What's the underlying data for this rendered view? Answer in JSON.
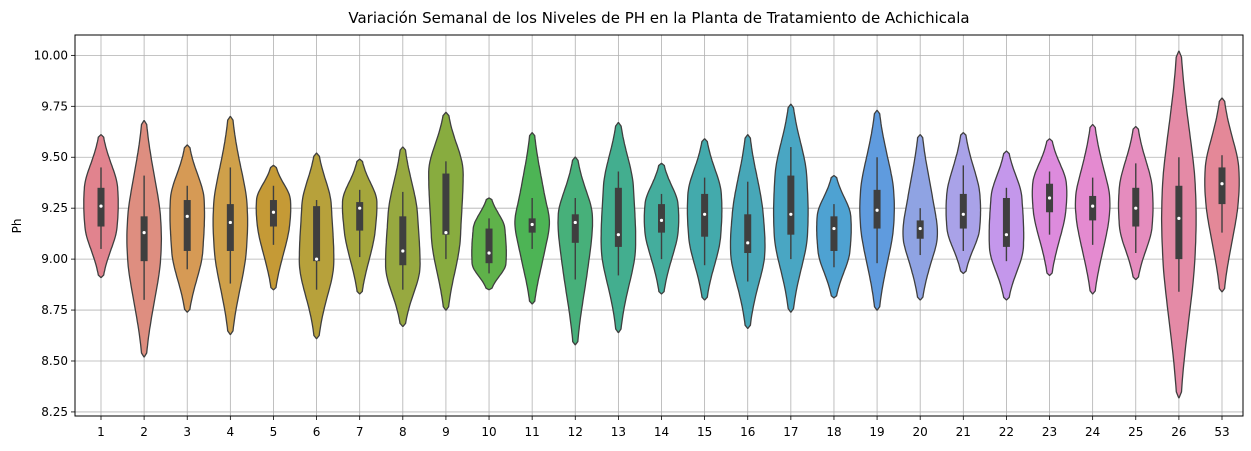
{
  "chart_data": {
    "type": "violin",
    "title": "Variación Semanal de los Niveles de PH en la Planta de Tratamiento de Achichicala",
    "xlabel": "",
    "ylabel": "Ph",
    "ylim": [
      8.23,
      10.1
    ],
    "yticks": [
      "8.25",
      "8.50",
      "8.75",
      "9.00",
      "9.25",
      "9.50",
      "9.75",
      "10.00"
    ],
    "grid": true,
    "categories": [
      "1",
      "2",
      "3",
      "4",
      "5",
      "6",
      "7",
      "8",
      "9",
      "10",
      "11",
      "12",
      "13",
      "14",
      "15",
      "16",
      "17",
      "18",
      "19",
      "20",
      "21",
      "22",
      "23",
      "24",
      "25",
      "26",
      "53"
    ],
    "colors": [
      "#e1838e",
      "#de8e80",
      "#d69a55",
      "#cfa04a",
      "#c59a36",
      "#b7a13b",
      "#a5a63c",
      "#97a940",
      "#88ac3f",
      "#5fb24a",
      "#4db455",
      "#47b07a",
      "#43ae8f",
      "#44ad9d",
      "#43aaac",
      "#47a7b8",
      "#49a6c3",
      "#4ea2d2",
      "#5f9bde",
      "#8fa3e3",
      "#a9a2e8",
      "#c497eb",
      "#dd8bdd",
      "#e48ad0",
      "#e58cbe",
      "#e48aa6",
      "#e48898"
    ],
    "series": [
      {
        "category": "1",
        "min": 8.91,
        "max": 9.61,
        "q1": 9.16,
        "median": 9.26,
        "q3": 9.35,
        "whisker_low": 9.05,
        "whisker_high": 9.45,
        "peak": 9.27
      },
      {
        "category": "2",
        "min": 8.52,
        "max": 9.68,
        "q1": 8.99,
        "median": 9.13,
        "q3": 9.21,
        "whisker_low": 8.8,
        "whisker_high": 9.41,
        "peak": 9.1
      },
      {
        "category": "3",
        "min": 8.74,
        "max": 9.56,
        "q1": 9.04,
        "median": 9.21,
        "q3": 9.29,
        "whisker_low": 8.95,
        "whisker_high": 9.36,
        "peak": 9.22
      },
      {
        "category": "4",
        "min": 8.63,
        "max": 9.7,
        "q1": 9.04,
        "median": 9.18,
        "q3": 9.27,
        "whisker_low": 8.88,
        "whisker_high": 9.45,
        "peak": 9.18
      },
      {
        "category": "5",
        "min": 8.85,
        "max": 9.46,
        "q1": 9.16,
        "median": 9.23,
        "q3": 9.29,
        "whisker_low": 9.07,
        "whisker_high": 9.36,
        "peak": 9.25
      },
      {
        "category": "6",
        "min": 8.61,
        "max": 9.52,
        "q1": 8.99,
        "median": 9.0,
        "q3": 9.26,
        "whisker_low": 8.85,
        "whisker_high": 9.29,
        "peak": 9.0
      },
      {
        "category": "7",
        "min": 8.83,
        "max": 9.49,
        "q1": 9.14,
        "median": 9.25,
        "q3": 9.28,
        "whisker_low": 9.01,
        "whisker_high": 9.34,
        "peak": 9.26
      },
      {
        "category": "8",
        "min": 8.67,
        "max": 9.55,
        "q1": 8.97,
        "median": 9.04,
        "q3": 9.21,
        "whisker_low": 8.85,
        "whisker_high": 9.33,
        "peak": 8.98
      },
      {
        "category": "9",
        "min": 8.75,
        "max": 9.72,
        "q1": 9.12,
        "median": 9.13,
        "q3": 9.42,
        "whisker_low": 9.0,
        "whisker_high": 9.48,
        "peak": 9.42
      },
      {
        "category": "10",
        "min": 8.85,
        "max": 9.3,
        "q1": 8.98,
        "median": 9.03,
        "q3": 9.15,
        "whisker_low": 8.93,
        "whisker_high": 9.2,
        "peak": 9.03
      },
      {
        "category": "11",
        "min": 8.78,
        "max": 9.62,
        "q1": 9.13,
        "median": 9.17,
        "q3": 9.2,
        "whisker_low": 9.05,
        "whisker_high": 9.3,
        "peak": 9.18
      },
      {
        "category": "12",
        "min": 8.58,
        "max": 9.5,
        "q1": 9.08,
        "median": 9.18,
        "q3": 9.22,
        "whisker_low": 8.9,
        "whisker_high": 9.3,
        "peak": 9.18
      },
      {
        "category": "13",
        "min": 8.64,
        "max": 9.67,
        "q1": 9.06,
        "median": 9.12,
        "q3": 9.35,
        "whisker_low": 8.92,
        "whisker_high": 9.43,
        "peak": 9.1
      },
      {
        "category": "14",
        "min": 8.83,
        "max": 9.47,
        "q1": 9.13,
        "median": 9.19,
        "q3": 9.27,
        "whisker_low": 9.0,
        "whisker_high": 9.32,
        "peak": 9.2
      },
      {
        "category": "15",
        "min": 8.8,
        "max": 9.59,
        "q1": 9.11,
        "median": 9.22,
        "q3": 9.32,
        "whisker_low": 8.97,
        "whisker_high": 9.4,
        "peak": 9.24
      },
      {
        "category": "16",
        "min": 8.66,
        "max": 9.61,
        "q1": 9.03,
        "median": 9.08,
        "q3": 9.22,
        "whisker_low": 8.89,
        "whisker_high": 9.38,
        "peak": 9.07
      },
      {
        "category": "17",
        "min": 8.74,
        "max": 9.76,
        "q1": 9.12,
        "median": 9.22,
        "q3": 9.41,
        "whisker_low": 9.0,
        "whisker_high": 9.55,
        "peak": 9.23
      },
      {
        "category": "18",
        "min": 8.81,
        "max": 9.41,
        "q1": 9.04,
        "median": 9.15,
        "q3": 9.21,
        "whisker_low": 8.96,
        "whisker_high": 9.27,
        "peak": 9.15
      },
      {
        "category": "19",
        "min": 8.75,
        "max": 9.73,
        "q1": 9.15,
        "median": 9.24,
        "q3": 9.34,
        "whisker_low": 8.98,
        "whisker_high": 9.5,
        "peak": 9.25
      },
      {
        "category": "20",
        "min": 8.8,
        "max": 9.61,
        "q1": 9.1,
        "median": 9.15,
        "q3": 9.19,
        "whisker_low": 9.02,
        "whisker_high": 9.25,
        "peak": 9.13
      },
      {
        "category": "21",
        "min": 8.93,
        "max": 9.62,
        "q1": 9.15,
        "median": 9.22,
        "q3": 9.32,
        "whisker_low": 9.04,
        "whisker_high": 9.46,
        "peak": 9.24
      },
      {
        "category": "22",
        "min": 8.8,
        "max": 9.53,
        "q1": 9.06,
        "median": 9.12,
        "q3": 9.3,
        "whisker_low": 8.99,
        "whisker_high": 9.35,
        "peak": 9.12
      },
      {
        "category": "23",
        "min": 8.92,
        "max": 9.59,
        "q1": 9.23,
        "median": 9.3,
        "q3": 9.37,
        "whisker_low": 9.12,
        "whisker_high": 9.43,
        "peak": 9.32
      },
      {
        "category": "24",
        "min": 8.83,
        "max": 9.66,
        "q1": 9.19,
        "median": 9.26,
        "q3": 9.31,
        "whisker_low": 9.07,
        "whisker_high": 9.4,
        "peak": 9.27
      },
      {
        "category": "25",
        "min": 8.9,
        "max": 9.65,
        "q1": 9.16,
        "median": 9.25,
        "q3": 9.35,
        "whisker_low": 9.03,
        "whisker_high": 9.47,
        "peak": 9.26
      },
      {
        "category": "26",
        "min": 8.32,
        "max": 10.02,
        "q1": 9.0,
        "median": 9.2,
        "q3": 9.36,
        "whisker_low": 8.84,
        "whisker_high": 9.5,
        "peak": 9.2
      },
      {
        "category": "53",
        "min": 8.84,
        "max": 9.79,
        "q1": 9.27,
        "median": 9.37,
        "q3": 9.45,
        "whisker_low": 9.13,
        "whisker_high": 9.51,
        "peak": 9.38
      }
    ]
  }
}
